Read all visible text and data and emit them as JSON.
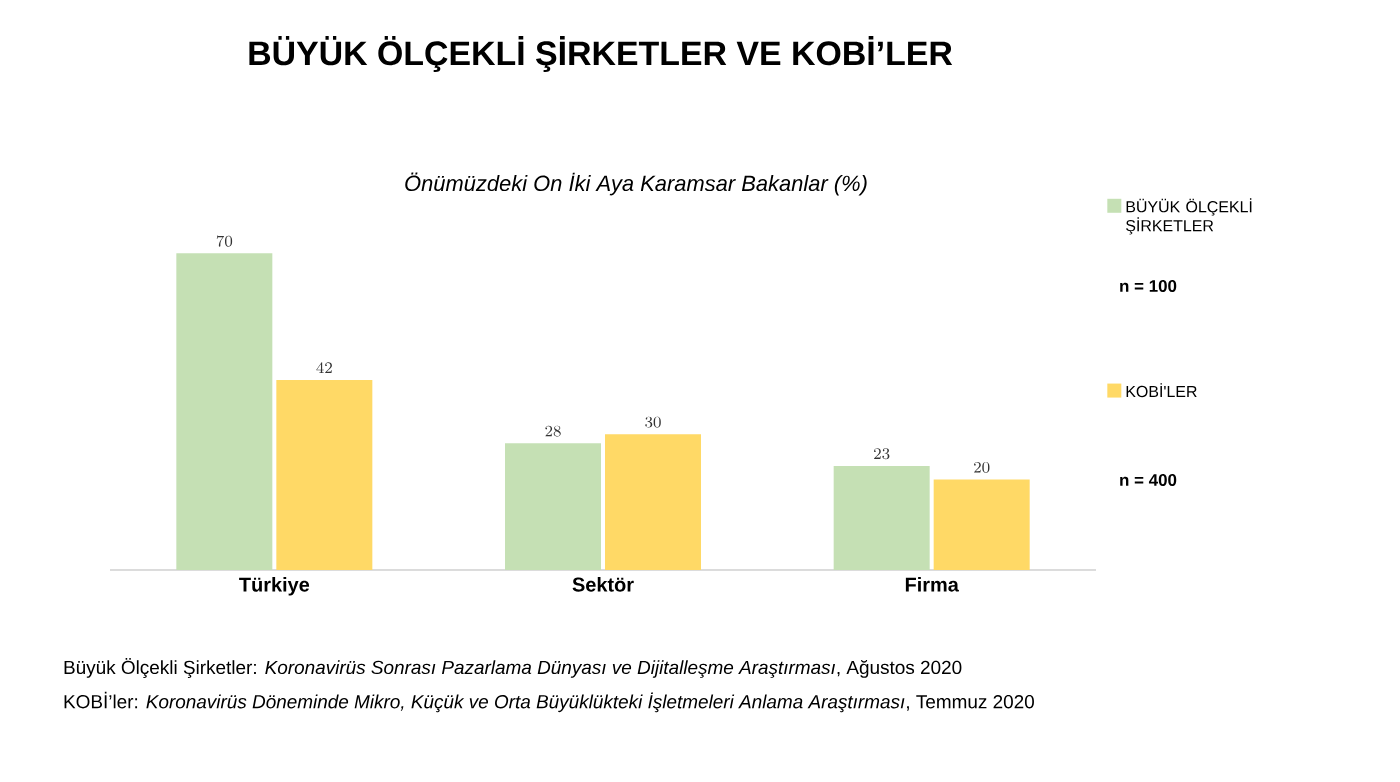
{
  "chart_data": {
    "type": "bar",
    "title": "BÜYÜK ÖLÇEKLİ ŞİRKETLER VE KOBİ’LER",
    "subtitle": "Önümüzdeki On İki Aya Karamsar Bakanlar (%)",
    "categories": [
      "Türkiye",
      "Sektör",
      "Firma"
    ],
    "series": [
      {
        "name": "BÜYÜK ÖLÇEKLİ ŞİRKETLER",
        "color": "#c5e0b4",
        "values": [
          70,
          28,
          23
        ]
      },
      {
        "name": "KOBİ'LER",
        "color": "#ffd966",
        "values": [
          42,
          30,
          20
        ]
      }
    ],
    "data_labels": true,
    "legend": "right",
    "annotations": [
      "n = 100",
      "n = 400",
      "Büyük Ölçekli Şirketler: *Koronavirüs Sonrası Pazarlama Dünyası ve Dijitalleşme Araştırması*, Ağustos 2020",
      "KOBİ’ler: *Koronavirüs Döneminde Mikro, Küçük ve Orta Büyüklükteki İşletmeleri Anlama Araştırması*, Temmuz 2020"
    ]
  }
}
